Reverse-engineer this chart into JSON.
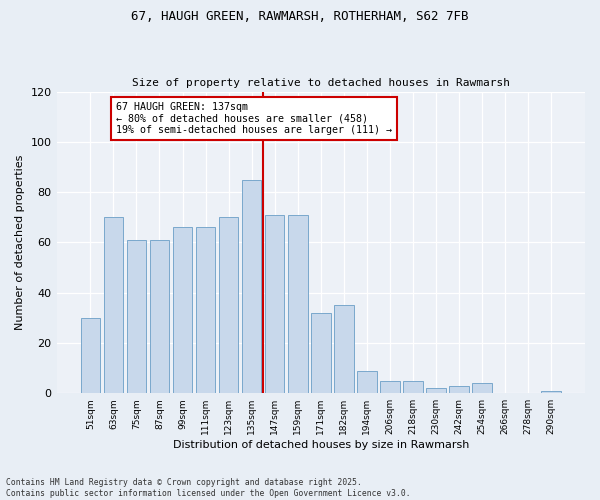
{
  "title": "67, HAUGH GREEN, RAWMARSH, ROTHERHAM, S62 7FB",
  "subtitle": "Size of property relative to detached houses in Rawmarsh",
  "xlabel": "Distribution of detached houses by size in Rawmarsh",
  "ylabel": "Number of detached properties",
  "categories": [
    "51sqm",
    "63sqm",
    "75sqm",
    "87sqm",
    "99sqm",
    "111sqm",
    "123sqm",
    "135sqm",
    "147sqm",
    "159sqm",
    "171sqm",
    "182sqm",
    "194sqm",
    "206sqm",
    "218sqm",
    "230sqm",
    "242sqm",
    "254sqm",
    "266sqm",
    "278sqm",
    "290sqm"
  ],
  "values": [
    30,
    70,
    61,
    61,
    66,
    66,
    70,
    85,
    71,
    71,
    32,
    35,
    9,
    5,
    5,
    2,
    3,
    4,
    0,
    0,
    1
  ],
  "bar_color": "#c8d8eb",
  "bar_edge_color": "#7aa8cc",
  "vline_x": 7.5,
  "highlight_color": "#cc0000",
  "annotation_line1": "67 HAUGH GREEN: 137sqm",
  "annotation_line2": "← 80% of detached houses are smaller (458)",
  "annotation_line3": "19% of semi-detached houses are larger (111) →",
  "ylim": [
    0,
    120
  ],
  "yticks": [
    0,
    20,
    40,
    60,
    80,
    100,
    120
  ],
  "footnote1": "Contains HM Land Registry data © Crown copyright and database right 2025.",
  "footnote2": "Contains public sector information licensed under the Open Government Licence v3.0.",
  "bg_color": "#e8eef5",
  "plot_bg_color": "#edf1f7"
}
